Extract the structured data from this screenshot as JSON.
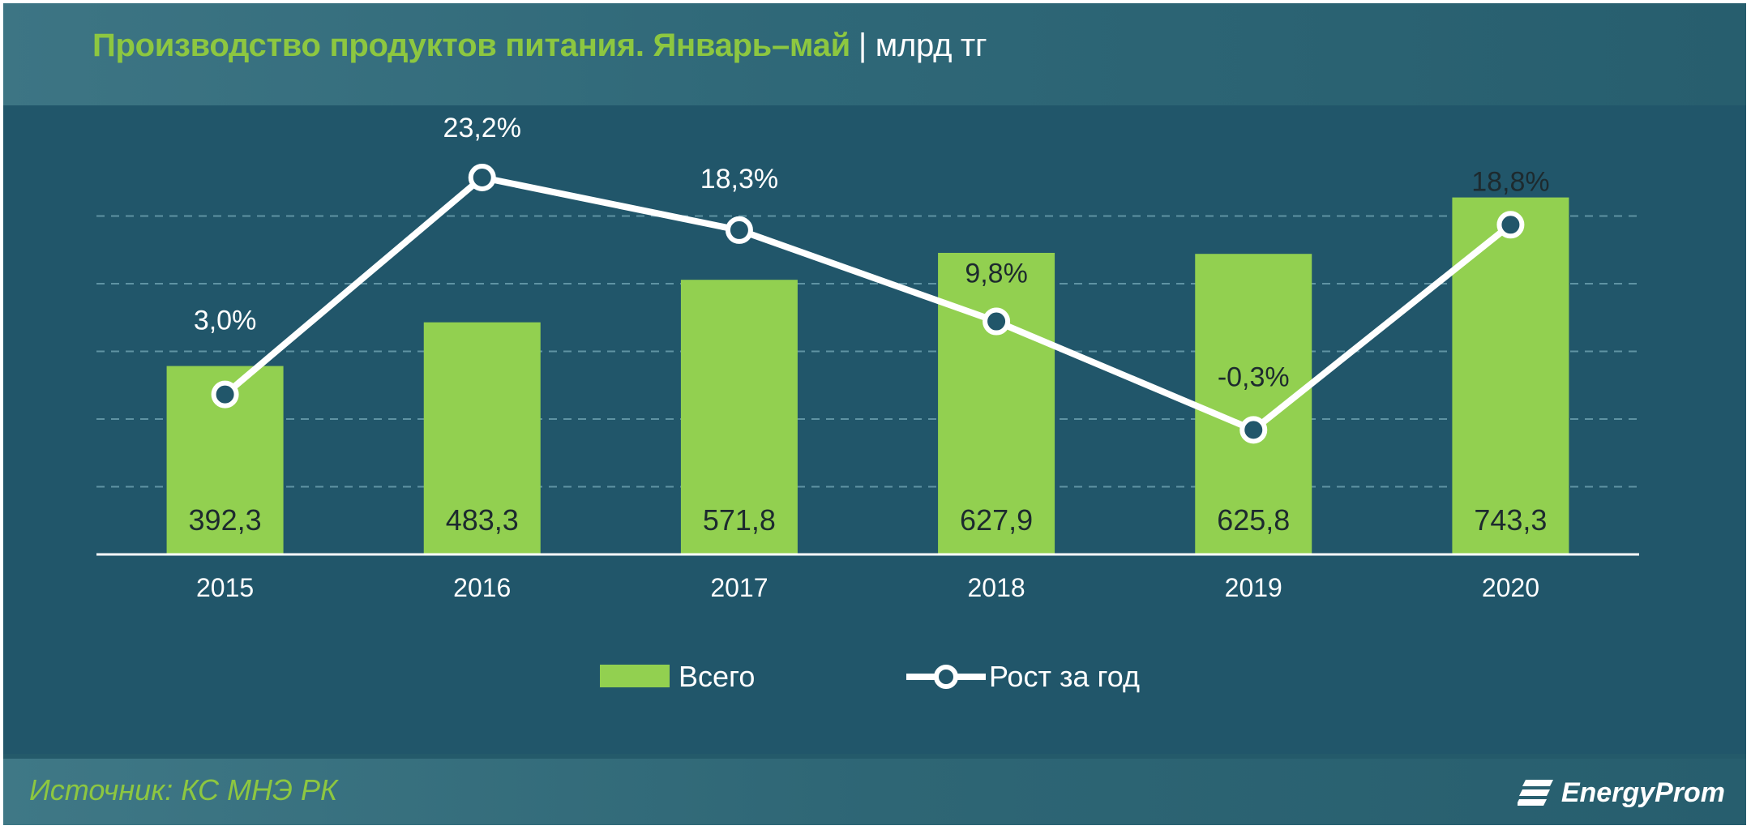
{
  "header": {
    "title": "Производство продуктов питания. Январь–май",
    "unit": "| млрд тг"
  },
  "footer": {
    "source": "Источник: КС МНЭ РК",
    "logo_text": "EnergyProm"
  },
  "colors": {
    "bar": "#92d050",
    "line": "#ffffff",
    "marker_fill": "#21566a",
    "title_green": "#8dc740"
  },
  "chart_data": {
    "type": "bar",
    "categories": [
      "2015",
      "2016",
      "2017",
      "2018",
      "2019",
      "2020"
    ],
    "series": [
      {
        "name": "Всего",
        "type": "bar",
        "values": [
          392.3,
          483.3,
          571.8,
          627.9,
          625.8,
          743.3
        ],
        "labels": [
          "392,3",
          "483,3",
          "571,8",
          "627,9",
          "625,8",
          "743,3"
        ]
      },
      {
        "name": "Рост за год",
        "type": "line",
        "values": [
          3.0,
          23.2,
          18.3,
          9.8,
          -0.3,
          18.8
        ],
        "labels": [
          "3,0%",
          "23,2%",
          "18,3%",
          "9,8%",
          "-0,3%",
          "18,8%"
        ]
      }
    ],
    "ylim": [
      0,
      800
    ],
    "y2lim": [
      -20,
      30
    ],
    "grid": true,
    "legend_position": "bottom"
  }
}
